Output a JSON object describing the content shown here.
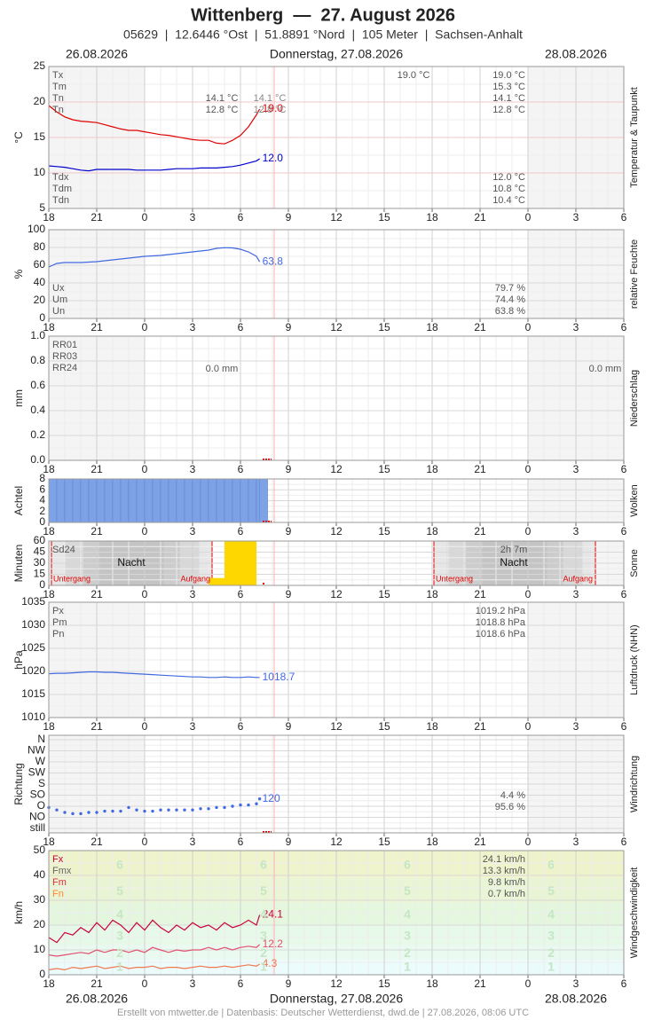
{
  "header": {
    "title": "Wittenberg  —  27. August 2026",
    "subtitle": "05629  |  12.6446 °Ost  |  51.8891 °Nord  |  105 Meter  |  Sachsen-Anhalt",
    "dates": [
      "26.08.2026",
      "Donnerstag, 27.08.2026",
      "28.08.2026"
    ],
    "footer": "Erstellt von mtwetter.de | Datenbasis: Deutscher Wetterdienst, dwd.de | 27.08.2026, 08:06 UTC"
  },
  "chart_data": {
    "type": "meteogram",
    "xlim": [
      0,
      36
    ],
    "xticks": [
      {
        "value": 0,
        "label": "18"
      },
      {
        "value": 3,
        "label": "21"
      },
      {
        "value": 6,
        "label": "0"
      },
      {
        "value": 9,
        "label": "3"
      },
      {
        "value": 12,
        "label": "6"
      },
      {
        "value": 15,
        "label": "9"
      },
      {
        "value": 18,
        "label": "12"
      },
      {
        "value": 21,
        "label": "15"
      },
      {
        "value": 24,
        "label": "18"
      },
      {
        "value": 27,
        "label": "21"
      },
      {
        "value": 30,
        "label": "0"
      },
      {
        "value": 33,
        "label": "3"
      },
      {
        "value": 36,
        "label": "6"
      }
    ],
    "x": [
      0,
      0.5,
      1,
      1.5,
      2,
      2.5,
      3,
      3.5,
      4,
      4.5,
      5,
      5.5,
      6,
      6.5,
      7,
      7.5,
      8,
      8.5,
      9,
      9.5,
      10,
      10.5,
      11,
      11.5,
      12,
      12.5,
      13,
      13.2
    ],
    "panels": [
      {
        "type": "line",
        "y_label": "°C",
        "side_label": "Temperatur & Taupunkt",
        "ylim": [
          5,
          25
        ],
        "yticks": [
          5,
          10,
          15,
          20,
          25
        ],
        "series": [
          {
            "color": "#e00000",
            "last_label": "19.0",
            "values": [
              19.5,
              18.6,
              17.9,
              17.5,
              17.3,
              17.2,
              17.1,
              16.8,
              16.5,
              16.2,
              16.0,
              16.0,
              15.8,
              15.6,
              15.4,
              15.3,
              15.1,
              14.9,
              14.7,
              14.6,
              14.6,
              14.2,
              14.1,
              14.6,
              15.3,
              16.5,
              18.2,
              19.0
            ]
          },
          {
            "color": "#0000cc",
            "last_label": "12.0",
            "values": [
              11.0,
              10.9,
              10.8,
              10.6,
              10.4,
              10.3,
              10.5,
              10.5,
              10.5,
              10.5,
              10.5,
              10.4,
              10.4,
              10.4,
              10.4,
              10.5,
              10.6,
              10.6,
              10.6,
              10.7,
              10.7,
              10.7,
              10.8,
              10.9,
              11.1,
              11.4,
              11.7,
              12.0
            ]
          }
        ],
        "stats": [
          {
            "label": "Tx",
            "value": "19.0 °C"
          },
          {
            "label": "Tm",
            "value": "15.3 °C"
          },
          {
            "label": "Tn",
            "value": "14.1 °C"
          },
          {
            "label": "Tn",
            "value": "12.8 °C"
          },
          {
            "label": "Tdx",
            "value": "12.0 °C"
          },
          {
            "label": "Tdm",
            "value": "10.8 °C"
          },
          {
            "label": "Tdn",
            "value": "10.4 °C"
          }
        ],
        "notes": [
          "19.0 °C",
          "14.1 °C",
          "12.8 °C",
          "14.1 °C",
          "12.8 °C"
        ]
      },
      {
        "type": "line",
        "y_label": "%",
        "side_label": "relative Feuchte",
        "ylim": [
          0,
          100
        ],
        "yticks": [
          0,
          20,
          40,
          60,
          80,
          100
        ],
        "series": [
          {
            "color": "#4169e1",
            "last_label": "63.8",
            "values": [
              58,
              62,
              63,
              63,
              63,
              63.5,
              64,
              65,
              66,
              67,
              68,
              69,
              70,
              70.5,
              71,
              72,
              73,
              74,
              75,
              76,
              77,
              79,
              79.7,
              79.5,
              78,
              75,
              70,
              63.8
            ]
          }
        ],
        "stats": [
          {
            "label": "Ux",
            "value": "79.7 %"
          },
          {
            "label": "Um",
            "value": "74.4 %"
          },
          {
            "label": "Un",
            "value": "63.8 %"
          }
        ]
      },
      {
        "type": "none",
        "y_label": "mm",
        "side_label": "Niederschlag",
        "ylim": [
          0,
          1
        ],
        "yticks": [
          {
            "value": 0,
            "label": "0.0"
          },
          0.2,
          0.4,
          0.6,
          0.8,
          {
            "value": 1,
            "label": "1.0"
          }
        ],
        "stats": [
          {
            "label": "RR01"
          },
          {
            "label": "RR03"
          },
          {
            "label": "RR24"
          }
        ],
        "notes": [
          "0.0 mm",
          "0.0 mm"
        ]
      },
      {
        "type": "bar",
        "y_label": "Achtel",
        "side_label": "Wolken",
        "ylim": [
          0,
          8
        ],
        "yticks": [
          0,
          2,
          4,
          6,
          8
        ],
        "color": "#7ea2e6",
        "width": 0.5,
        "values": [
          8,
          8,
          8,
          8,
          8,
          8,
          8,
          8,
          8,
          8,
          8,
          8,
          8,
          8,
          8,
          8,
          8,
          8,
          8,
          8,
          8,
          8,
          8,
          8,
          8,
          8,
          8,
          8
        ]
      },
      {
        "type": "bar",
        "y_label": "Minuten",
        "side_label": "Sonne",
        "ylim": [
          0,
          60
        ],
        "yticks": [
          0,
          15,
          30,
          45,
          60
        ],
        "color": "#ffd700",
        "width": 1,
        "x": [
          10,
          11,
          12
        ],
        "values": [
          10,
          60,
          60
        ],
        "stats": [
          {
            "label": "Sd24"
          }
        ],
        "notes": [
          "2h 7m",
          "Nacht",
          "Nacht",
          "Untergang",
          "Aufgang",
          "Untergang",
          "Aufgang"
        ]
      },
      {
        "type": "line",
        "y_label": "hPa",
        "side_label": "Luftdruck (NHN)",
        "ylim": [
          1010,
          1035
        ],
        "yticks": [
          1010,
          1015,
          1020,
          1025,
          1030,
          1035
        ],
        "series": [
          {
            "color": "#4169e1",
            "last_label": "1018.7",
            "values": [
              1019.5,
              1019.6,
              1019.6,
              1019.7,
              1019.8,
              1019.9,
              1019.9,
              1019.8,
              1019.8,
              1019.7,
              1019.6,
              1019.5,
              1019.4,
              1019.3,
              1019.2,
              1019.1,
              1019.0,
              1018.9,
              1018.8,
              1018.8,
              1018.7,
              1018.7,
              1018.8,
              1018.7,
              1018.7,
              1018.8,
              1018.7,
              1018.7
            ]
          }
        ],
        "stats": [
          {
            "label": "Px",
            "value": "1019.2 hPa"
          },
          {
            "label": "Pm",
            "value": "1018.8 hPa"
          },
          {
            "label": "Pn",
            "value": "1018.6 hPa"
          }
        ]
      },
      {
        "type": "scatter",
        "y_label": "Richtung",
        "side_label": "Windrichtung",
        "ylim": [
          0,
          360
        ],
        "yticks": [
          {
            "value": 0,
            "label": "still"
          },
          {
            "value": 45,
            "label": "NO"
          },
          {
            "value": 90,
            "label": "O"
          },
          {
            "value": 135,
            "label": "SO"
          },
          {
            "value": 180,
            "label": "S"
          },
          {
            "value": 225,
            "label": "SW"
          },
          {
            "value": 270,
            "label": "W"
          },
          {
            "value": 315,
            "label": "NW"
          },
          {
            "value": 360,
            "label": "N"
          }
        ],
        "series": [
          {
            "color": "#4169e1",
            "last_label": "120",
            "values": [
              85,
              75,
              65,
              60,
              60,
              65,
              65,
              70,
              70,
              70,
              85,
              75,
              70,
              70,
              75,
              75,
              75,
              75,
              75,
              80,
              80,
              85,
              85,
              90,
              95,
              95,
              100,
              120
            ]
          }
        ],
        "notes": [
          "4.4 %",
          "95.6 %"
        ]
      },
      {
        "type": "line",
        "y_label": "km/h",
        "side_label": "Windgeschwindigkeit",
        "ylim": [
          0,
          50
        ],
        "yticks": [
          0,
          10,
          20,
          30,
          40,
          50
        ],
        "beaufort": [
          "1",
          "2",
          "3",
          "4",
          "5",
          "6"
        ],
        "series": [
          {
            "color": "#c8003c",
            "last_label": "24.1",
            "values": [
              15,
              13,
              17,
              16,
              19,
              17,
              21,
              18,
              22,
              20,
              17,
              21,
              18,
              22,
              19,
              17,
              20,
              18,
              21,
              19,
              20,
              18,
              21,
              19,
              20,
              22,
              20,
              24.1
            ]
          },
          {
            "color": "#e0506e",
            "last_label": "12.2",
            "values": [
              8,
              7.5,
              8,
              8.5,
              9,
              8.5,
              10,
              9,
              10,
              10,
              9,
              10,
              9,
              11,
              10,
              9,
              10,
              9.5,
              10,
              10,
              11,
              10,
              11,
              10,
              11,
              11.5,
              11,
              12.2
            ]
          },
          {
            "color": "#f07850",
            "last_label": "4.3",
            "values": [
              2,
              2.5,
              2,
              3,
              2.5,
              3,
              3.5,
              2.5,
              3,
              3.5,
              2.5,
              3,
              3,
              3.5,
              2.5,
              3,
              3,
              2.5,
              3,
              3.5,
              3,
              3,
              3.5,
              3,
              3.5,
              4,
              3.5,
              4.3
            ]
          }
        ],
        "stats": [
          {
            "label": "Fx",
            "value": "24.1 km/h",
            "color": "#c8003c"
          },
          {
            "label": "Fmx",
            "value": "13.3 km/h",
            "color": "#666666"
          },
          {
            "label": "Fm",
            "value": "9.8 km/h",
            "color": "#e03040"
          },
          {
            "label": "Fn",
            "value": "0.7 km/h",
            "color": "#ff8833"
          }
        ]
      }
    ]
  }
}
